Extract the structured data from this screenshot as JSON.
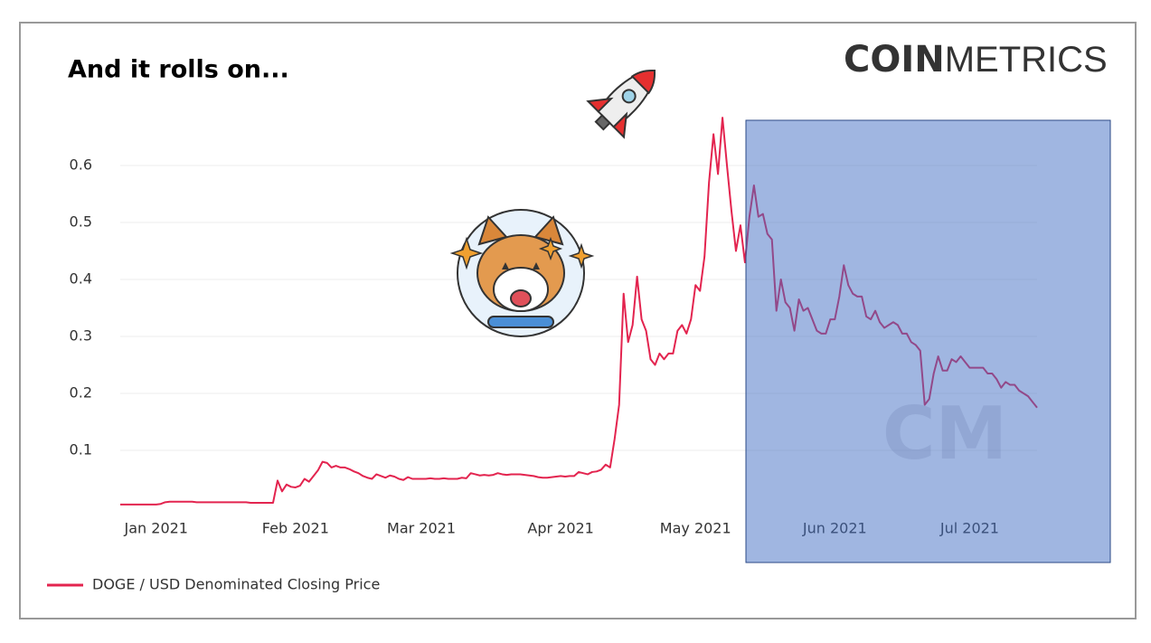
{
  "chart_data": {
    "type": "line",
    "title": "And it rolls on...",
    "logo": {
      "bold": "COIN",
      "light": "METRICS"
    },
    "watermark": "CM",
    "categories": [
      null,
      null,
      null,
      null,
      null,
      null,
      null,
      null,
      "Jan 2021",
      null,
      null,
      null,
      null,
      null,
      null,
      null,
      null,
      null,
      null,
      null,
      null,
      null,
      null,
      null,
      null,
      null,
      null,
      null,
      null,
      null,
      null,
      null,
      null,
      null,
      null,
      null,
      null,
      null,
      null,
      "Feb 2021",
      null,
      null,
      null,
      null,
      null,
      null,
      null,
      null,
      null,
      null,
      null,
      null,
      null,
      null,
      null,
      null,
      null,
      null,
      null,
      null,
      null,
      null,
      null,
      null,
      null,
      null,
      null,
      "Mar 2021",
      null,
      null,
      null,
      null,
      null,
      null,
      null,
      null,
      null,
      null,
      null,
      null,
      null,
      null,
      null,
      null,
      null,
      null,
      null,
      null,
      null,
      null,
      null,
      null,
      null,
      null,
      null,
      null,
      null,
      null,
      "Apr 2021",
      null,
      null,
      null,
      null,
      null,
      null,
      null,
      null,
      null,
      null,
      null,
      null,
      null,
      null,
      null,
      null,
      null,
      null,
      null,
      null,
      null,
      null,
      null,
      null,
      null,
      null,
      null,
      null,
      null,
      "May 2021",
      null,
      null,
      null,
      null,
      null,
      null,
      null,
      null,
      null,
      null,
      null,
      null,
      null,
      null,
      null,
      null,
      null,
      null,
      null,
      null,
      null,
      null,
      null,
      null,
      null,
      null,
      null,
      null,
      null,
      null,
      "Jun 2021",
      null,
      null,
      null,
      null,
      null,
      null,
      null,
      null,
      null,
      null,
      null,
      null,
      null,
      null,
      null,
      null,
      null,
      null,
      null,
      null,
      null,
      null,
      null,
      null,
      null,
      null,
      null,
      null,
      null,
      "Jul 2021",
      null,
      null,
      null,
      null,
      null,
      null,
      null,
      null,
      null,
      null,
      null,
      null,
      null,
      null,
      null
    ],
    "series": [
      {
        "name": "DOGE / USD Denominated Closing Price",
        "color": "#e3244f",
        "values": [
          0.005,
          0.005,
          0.005,
          0.005,
          0.005,
          0.005,
          0.005,
          0.005,
          0.005,
          0.006,
          0.009,
          0.01,
          0.01,
          0.01,
          0.01,
          0.01,
          0.01,
          0.009,
          0.009,
          0.009,
          0.009,
          0.009,
          0.009,
          0.009,
          0.009,
          0.009,
          0.009,
          0.009,
          0.009,
          0.008,
          0.008,
          0.008,
          0.008,
          0.008,
          0.008,
          0.047,
          0.028,
          0.04,
          0.036,
          0.035,
          0.038,
          0.05,
          0.045,
          0.055,
          0.065,
          0.08,
          0.078,
          0.07,
          0.073,
          0.07,
          0.07,
          0.067,
          0.063,
          0.06,
          0.055,
          0.052,
          0.05,
          0.058,
          0.055,
          0.052,
          0.056,
          0.054,
          0.05,
          0.048,
          0.053,
          0.05,
          0.05,
          0.05,
          0.05,
          0.051,
          0.05,
          0.05,
          0.051,
          0.05,
          0.05,
          0.05,
          0.052,
          0.051,
          0.06,
          0.058,
          0.056,
          0.057,
          0.056,
          0.057,
          0.06,
          0.058,
          0.057,
          0.058,
          0.058,
          0.058,
          0.057,
          0.056,
          0.055,
          0.053,
          0.052,
          0.052,
          0.053,
          0.054,
          0.055,
          0.054,
          0.055,
          0.055,
          0.062,
          0.06,
          0.058,
          0.062,
          0.063,
          0.066,
          0.075,
          0.07,
          0.12,
          0.18,
          0.375,
          0.29,
          0.32,
          0.405,
          0.33,
          0.31,
          0.26,
          0.25,
          0.27,
          0.26,
          0.27,
          0.27,
          0.31,
          0.32,
          0.305,
          0.33,
          0.39,
          0.38,
          0.44,
          0.57,
          0.655,
          0.585,
          0.684,
          0.6,
          0.52,
          0.45,
          0.495,
          0.43,
          0.51,
          0.565,
          0.51,
          0.515,
          0.48,
          0.47,
          0.345,
          0.4,
          0.36,
          0.35,
          0.31,
          0.365,
          0.345,
          0.35,
          0.33,
          0.31,
          0.305,
          0.305,
          0.33,
          0.33,
          0.37,
          0.425,
          0.39,
          0.375,
          0.37,
          0.37,
          0.335,
          0.33,
          0.345,
          0.325,
          0.315,
          0.32,
          0.325,
          0.32,
          0.305,
          0.305,
          0.29,
          0.285,
          0.275,
          0.18,
          0.19,
          0.235,
          0.265,
          0.24,
          0.24,
          0.26,
          0.255,
          0.265,
          0.255,
          0.245,
          0.245,
          0.245,
          0.245,
          0.235,
          0.235,
          0.225,
          0.21,
          0.22,
          0.215,
          0.215,
          0.205,
          0.2,
          0.195,
          0.185,
          0.175
        ]
      }
    ],
    "ylim": [
      0,
      0.7
    ],
    "yticks": [
      0.1,
      0.2,
      0.3,
      0.4,
      0.5,
      0.6
    ],
    "grid": true,
    "legend": "bottom-left"
  }
}
